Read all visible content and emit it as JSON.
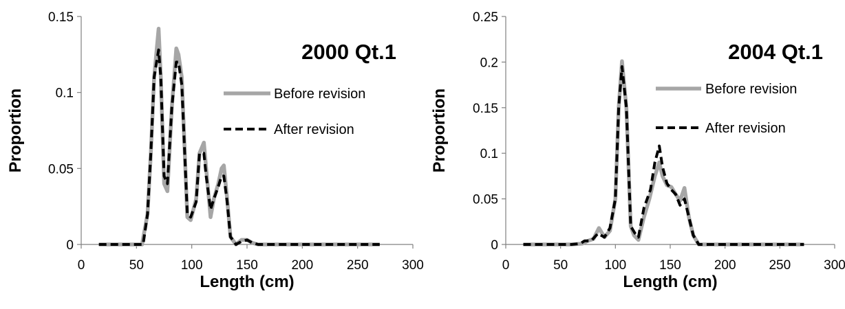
{
  "colors": {
    "before": "#a6a6a6",
    "after": "#000000",
    "axis": "#808080"
  },
  "chart_data": [
    {
      "type": "line",
      "title": "2000 Qt.1",
      "xlabel": "Length (cm)",
      "ylabel": "Proportion",
      "xlim": [
        0,
        300
      ],
      "ylim": [
        0,
        0.15
      ],
      "x_ticks": [
        0,
        50,
        100,
        150,
        200,
        250,
        300
      ],
      "y_ticks": [
        0,
        0.05,
        0.1,
        0.15
      ],
      "x_tick_labels": [
        "0",
        "50",
        "100",
        "150",
        "200",
        "250",
        "300"
      ],
      "y_tick_labels": [
        "0",
        "0.05",
        "0.1",
        "0.15"
      ],
      "grid": false,
      "legend": "right",
      "series": [
        {
          "name": "Before revision",
          "color": "#a6a6a6",
          "dash": "solid",
          "points": [
            [
              16,
              0
            ],
            [
              50,
              0
            ],
            [
              55,
              0
            ],
            [
              60,
              0.02
            ],
            [
              63,
              0.06
            ],
            [
              66,
              0.11
            ],
            [
              70,
              0.142
            ],
            [
              72,
              0.11
            ],
            [
              75,
              0.04
            ],
            [
              78,
              0.035
            ],
            [
              82,
              0.09
            ],
            [
              86,
              0.129
            ],
            [
              88,
              0.125
            ],
            [
              91,
              0.11
            ],
            [
              96,
              0.018
            ],
            [
              99,
              0.016
            ],
            [
              104,
              0.03
            ],
            [
              107,
              0.06
            ],
            [
              111,
              0.067
            ],
            [
              113,
              0.05
            ],
            [
              117,
              0.018
            ],
            [
              120,
              0.03
            ],
            [
              124,
              0.04
            ],
            [
              127,
              0.05
            ],
            [
              129,
              0.052
            ],
            [
              132,
              0.03
            ],
            [
              135,
              0.005
            ],
            [
              140,
              0
            ],
            [
              145,
              0.003
            ],
            [
              150,
              0.003
            ],
            [
              155,
              0.001
            ],
            [
              160,
              0
            ],
            [
              270,
              0
            ]
          ]
        },
        {
          "name": "After revision",
          "color": "#000000",
          "dash": "dashed",
          "points": [
            [
              16,
              0
            ],
            [
              50,
              0
            ],
            [
              56,
              0
            ],
            [
              60,
              0.02
            ],
            [
              63,
              0.06
            ],
            [
              66,
              0.11
            ],
            [
              70,
              0.128
            ],
            [
              72,
              0.11
            ],
            [
              75,
              0.045
            ],
            [
              78,
              0.04
            ],
            [
              82,
              0.09
            ],
            [
              86,
              0.12
            ],
            [
              88,
              0.12
            ],
            [
              91,
              0.105
            ],
            [
              96,
              0.02
            ],
            [
              99,
              0.018
            ],
            [
              104,
              0.028
            ],
            [
              107,
              0.06
            ],
            [
              111,
              0.06
            ],
            [
              113,
              0.045
            ],
            [
              117,
              0.023
            ],
            [
              120,
              0.03
            ],
            [
              124,
              0.038
            ],
            [
              127,
              0.045
            ],
            [
              129,
              0.045
            ],
            [
              132,
              0.028
            ],
            [
              135,
              0.005
            ],
            [
              140,
              0
            ],
            [
              145,
              0.002
            ],
            [
              150,
              0.003
            ],
            [
              155,
              0.001
            ],
            [
              160,
              0
            ],
            [
              270,
              0
            ]
          ]
        }
      ]
    },
    {
      "type": "line",
      "title": "2004 Qt.1",
      "xlabel": "Length (cm)",
      "ylabel": "Proportion",
      "xlim": [
        0,
        300
      ],
      "ylim": [
        0,
        0.25
      ],
      "x_ticks": [
        0,
        50,
        100,
        150,
        200,
        250,
        300
      ],
      "y_ticks": [
        0,
        0.05,
        0.1,
        0.15,
        0.2,
        0.25
      ],
      "x_tick_labels": [
        "0",
        "50",
        "100",
        "150",
        "200",
        "250",
        "300"
      ],
      "y_tick_labels": [
        "0",
        "0.05",
        "0.1",
        "0.15",
        "0.2",
        "0.25"
      ],
      "grid": false,
      "legend": "right",
      "series": [
        {
          "name": "Before revision",
          "color": "#a6a6a6",
          "dash": "solid",
          "points": [
            [
              16,
              0
            ],
            [
              60,
              0
            ],
            [
              70,
              0.001
            ],
            [
              75,
              0.004
            ],
            [
              80,
              0.006
            ],
            [
              85,
              0.018
            ],
            [
              90,
              0.008
            ],
            [
              95,
              0.015
            ],
            [
              100,
              0.05
            ],
            [
              103,
              0.15
            ],
            [
              106,
              0.201
            ],
            [
              110,
              0.15
            ],
            [
              114,
              0.02
            ],
            [
              117,
              0.01
            ],
            [
              121,
              0.005
            ],
            [
              126,
              0.03
            ],
            [
              131,
              0.05
            ],
            [
              136,
              0.075
            ],
            [
              140,
              0.09
            ],
            [
              143,
              0.075
            ],
            [
              147,
              0.065
            ],
            [
              151,
              0.063
            ],
            [
              155,
              0.055
            ],
            [
              159,
              0.048
            ],
            [
              163,
              0.062
            ],
            [
              167,
              0.03
            ],
            [
              171,
              0.01
            ],
            [
              176,
              0
            ],
            [
              272,
              0
            ]
          ]
        },
        {
          "name": "After revision",
          "color": "#000000",
          "dash": "dashed",
          "points": [
            [
              16,
              0
            ],
            [
              60,
              0
            ],
            [
              68,
              0.001
            ],
            [
              72,
              0.004
            ],
            [
              78,
              0.004
            ],
            [
              84,
              0.012
            ],
            [
              90,
              0.008
            ],
            [
              95,
              0.018
            ],
            [
              100,
              0.05
            ],
            [
              103,
              0.15
            ],
            [
              106,
              0.195
            ],
            [
              110,
              0.15
            ],
            [
              114,
              0.02
            ],
            [
              118,
              0.012
            ],
            [
              121,
              0.008
            ],
            [
              126,
              0.04
            ],
            [
              132,
              0.06
            ],
            [
              136,
              0.09
            ],
            [
              140,
              0.108
            ],
            [
              143,
              0.085
            ],
            [
              147,
              0.067
            ],
            [
              151,
              0.06
            ],
            [
              155,
              0.055
            ],
            [
              159,
              0.043
            ],
            [
              163,
              0.05
            ],
            [
              167,
              0.03
            ],
            [
              171,
              0.01
            ],
            [
              176,
              0
            ],
            [
              272,
              0
            ]
          ]
        }
      ]
    }
  ]
}
